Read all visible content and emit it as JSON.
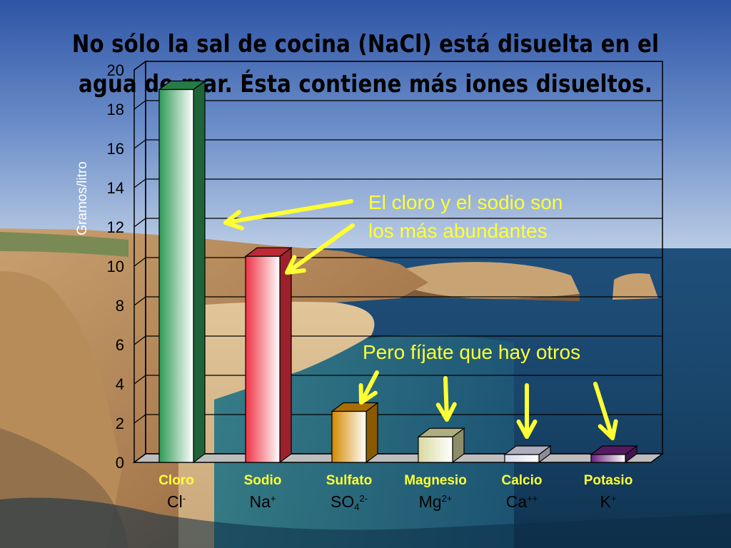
{
  "slide": {
    "title_line1": "No sólo la sal de cocina (NaCl) está disuelta en el",
    "title_line2": "agua de mar. Ésta contiene más iones disueltos.",
    "annotation_main_line1": "El cloro y el sodio son",
    "annotation_main_line2": "los más abundantes",
    "annotation_others": "Pero fíjate que hay otros",
    "annotation_color": "#ffff33"
  },
  "formulas": [
    {
      "base": "Cl",
      "sup": "-",
      "sub": ""
    },
    {
      "base": "Na",
      "sup": "+",
      "sub": ""
    },
    {
      "base": "SO",
      "sub": "4",
      "sup": "2-"
    },
    {
      "base": "Mg",
      "sup": "2+",
      "sub": ""
    },
    {
      "base": "Ca",
      "sup": "++",
      "sub": ""
    },
    {
      "base": "K",
      "sup": "+",
      "sub": ""
    }
  ],
  "chart_data": {
    "type": "bar",
    "style": "3d",
    "categories": [
      "Cloro",
      "Sodio",
      "Sulfato",
      "Magnesio",
      "Calcio",
      "Potasio"
    ],
    "values": [
      19.0,
      10.5,
      2.6,
      1.3,
      0.4,
      0.4
    ],
    "bar_colors": [
      "#2e9a56",
      "#ee3344",
      "#d48a00",
      "#d9d9a0",
      "#d8d8ec",
      "#6a1f7a"
    ],
    "ylabel": "Gramos/litro",
    "yticks": [
      "0",
      "2",
      "4",
      "6",
      "8",
      "10",
      "12",
      "14",
      "16",
      "18",
      "20"
    ],
    "ylim": [
      0,
      20
    ],
    "grid": true,
    "category_label_color": "#ffff33"
  }
}
